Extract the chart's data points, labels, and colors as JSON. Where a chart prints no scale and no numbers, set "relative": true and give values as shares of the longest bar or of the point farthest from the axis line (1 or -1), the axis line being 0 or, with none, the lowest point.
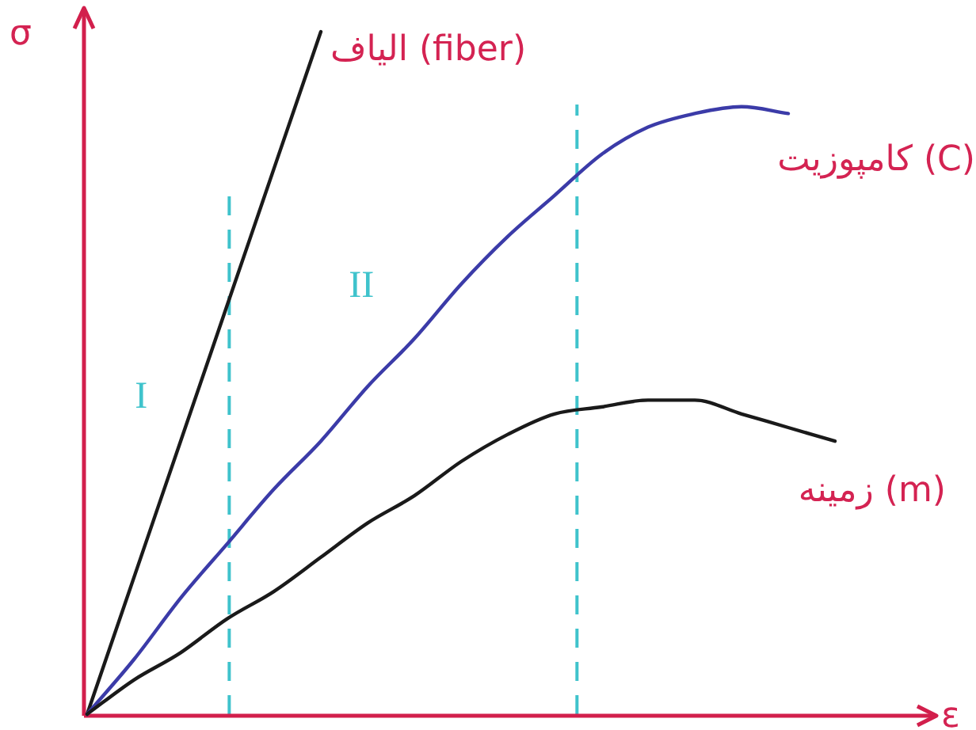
{
  "chart_data": {
    "type": "line",
    "relative": true,
    "xlabel": "ε",
    "ylabel": "σ",
    "marker": "none",
    "line_style": "solid",
    "legend": false,
    "categories": [
      null,
      null,
      null,
      null,
      null,
      null,
      null,
      null,
      null,
      null,
      null,
      null,
      null,
      null,
      null,
      null,
      null
    ],
    "series": [
      {
        "name": "الیاف (fiber)",
        "color": "#1a1a1a",
        "values": [
          0,
          0.2,
          0.4,
          0.6,
          0.8,
          1,
          null,
          null,
          null,
          null,
          null,
          null,
          null,
          null,
          null,
          null,
          null
        ]
      },
      {
        "name": "کامپوزیت (C)",
        "color": "#3b3ba8",
        "values": [
          0,
          0.08,
          0.17,
          0.25,
          0.33,
          0.4,
          0.48,
          0.55,
          0.63,
          0.7,
          0.76,
          0.82,
          0.86,
          0.88,
          0.89,
          0.88,
          null
        ]
      },
      {
        "name": "زمینه (m)",
        "color": "#1a1a1a",
        "values": [
          0,
          0.05,
          0.09,
          0.14,
          0.18,
          0.23,
          0.28,
          0.32,
          0.37,
          0.41,
          0.44,
          0.45,
          0.46,
          0.46,
          0.44,
          0.42,
          0.4
        ]
      }
    ],
    "annotations": [
      "I",
      "II"
    ]
  }
}
